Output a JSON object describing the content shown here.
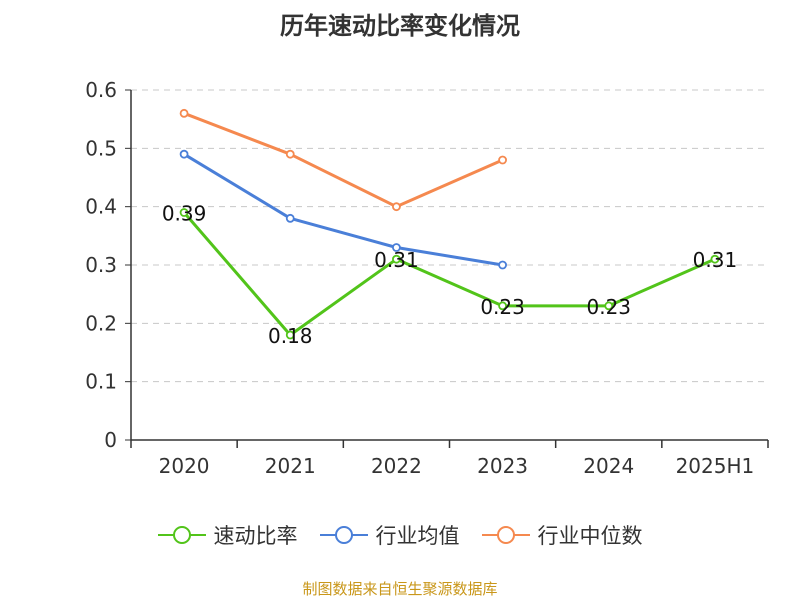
{
  "chart_data": {
    "type": "line",
    "title": "历年速动比率变化情况",
    "categories": [
      "2020",
      "2021",
      "2022",
      "2023",
      "2024",
      "2025H1"
    ],
    "yticks": [
      "0",
      "0.1",
      "0.2",
      "0.3",
      "0.4",
      "0.5",
      "0.6"
    ],
    "ylim": [
      0,
      0.6
    ],
    "grid": true,
    "legend_position": "bottom",
    "series": [
      {
        "name": "速动比率",
        "color": "#52c41a",
        "values": [
          0.39,
          0.18,
          0.31,
          0.23,
          0.23,
          0.31
        ],
        "labels": [
          "0.39",
          "0.18",
          "0.31",
          "0.23",
          "0.23",
          "0.31"
        ],
        "show_labels": true
      },
      {
        "name": "行业均值",
        "color": "#4a7fd8",
        "values": [
          0.49,
          0.38,
          0.33,
          0.3,
          null,
          null
        ],
        "show_labels": false
      },
      {
        "name": "行业中位数",
        "color": "#f5894f",
        "values": [
          0.56,
          0.49,
          0.4,
          0.48,
          null,
          null
        ],
        "show_labels": false
      }
    ],
    "source": "制图数据来自恒生聚源数据库"
  }
}
